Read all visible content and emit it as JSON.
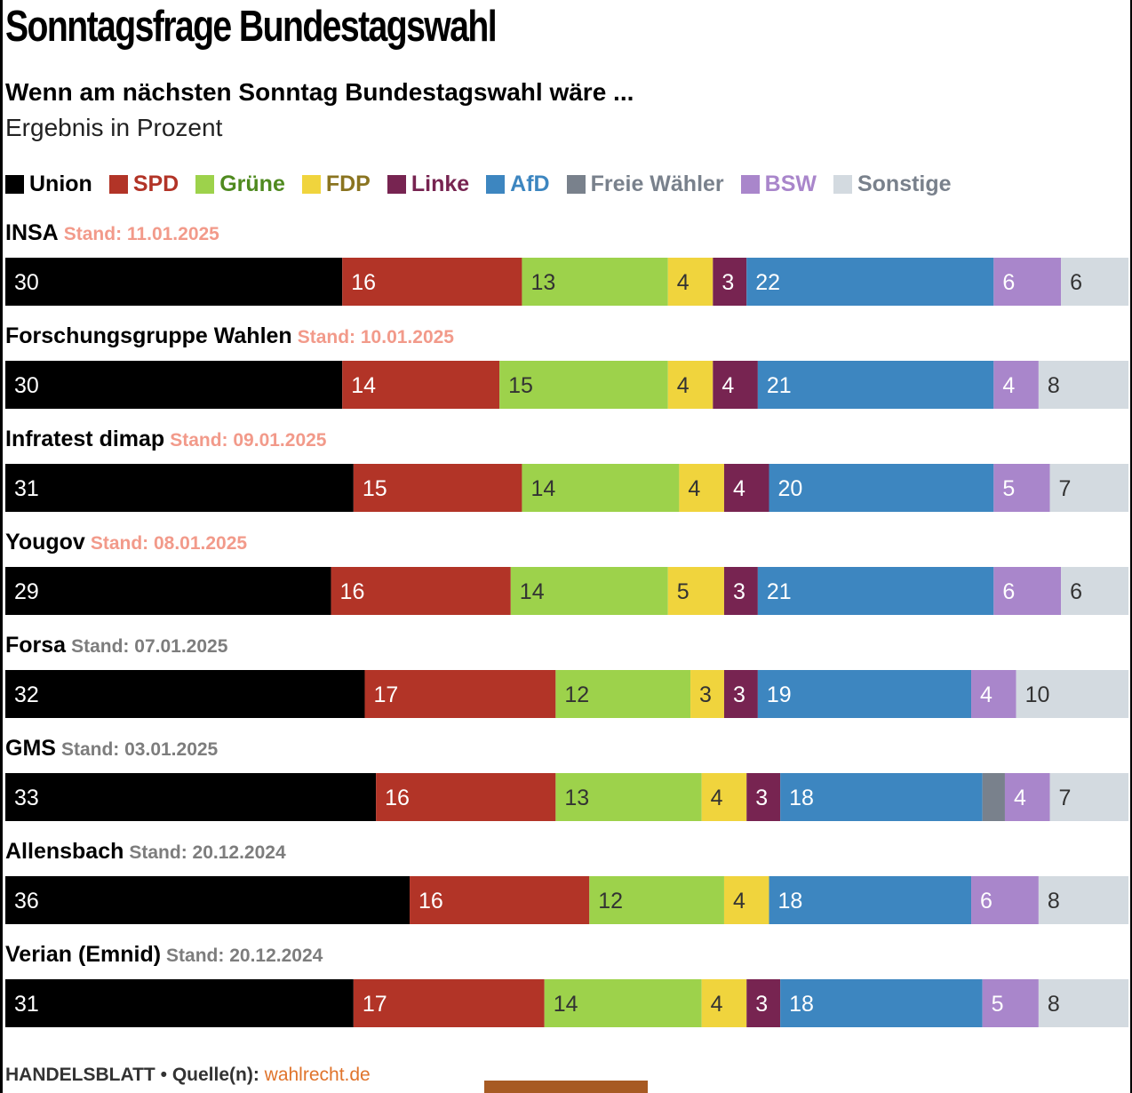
{
  "title": "Sonntagsfrage Bundestagswahl",
  "subtitle": "Wenn am nächsten Sonntag Bundestagswahl wäre ...",
  "unit_note": "Ergebnis in Prozent",
  "colors": {
    "Union": "#000000",
    "SPD": "#b23427",
    "Grüne": "#9dd24b",
    "FDP": "#f0d43d",
    "Linke": "#772451",
    "AfD": "#3d86c0",
    "Freie Wähler": "#79818c",
    "BSW": "#a986cb",
    "Sonstige": "#d3dae0"
  },
  "legend": [
    {
      "label": "Union",
      "color": "#000000",
      "text_color": "#000000"
    },
    {
      "label": "SPD",
      "color": "#b23427",
      "text_color": "#b23427"
    },
    {
      "label": "Grüne",
      "color": "#9dd24b",
      "text_color": "#4f8a1f"
    },
    {
      "label": "FDP",
      "color": "#f0d43d",
      "text_color": "#8a7420"
    },
    {
      "label": "Linke",
      "color": "#772451",
      "text_color": "#772451"
    },
    {
      "label": "AfD",
      "color": "#3d86c0",
      "text_color": "#3d86c0"
    },
    {
      "label": "Freie Wähler",
      "color": "#79818c",
      "text_color": "#79818c"
    },
    {
      "label": "BSW",
      "color": "#a986cb",
      "text_color": "#a986cb"
    },
    {
      "label": "Sonstige",
      "color": "#d3dae0",
      "text_color": "#79818c"
    }
  ],
  "stand_prefix": "Stand:",
  "stand_colors": {
    "recent": "#f29a8a",
    "older": "#7d7d7d"
  },
  "chart_data": {
    "type": "bar",
    "orientation": "horizontal",
    "stacked": true,
    "unit": "Prozent",
    "categories": [
      "INSA",
      "Forschungsgruppe Wahlen",
      "Infratest dimap",
      "Yougov",
      "Forsa",
      "GMS",
      "Allensbach",
      "Verian (Emnid)"
    ],
    "dates": [
      "11.01.2025",
      "10.01.2025",
      "09.01.2025",
      "08.01.2025",
      "07.01.2025",
      "03.01.2025",
      "20.12.2024",
      "20.12.2024"
    ],
    "date_highlight": [
      true,
      true,
      true,
      true,
      false,
      false,
      false,
      false
    ],
    "series": [
      {
        "name": "Union",
        "values": [
          30,
          30,
          31,
          29,
          32,
          33,
          36,
          31
        ]
      },
      {
        "name": "SPD",
        "values": [
          16,
          14,
          15,
          16,
          17,
          16,
          16,
          17
        ]
      },
      {
        "name": "Grüne",
        "values": [
          13,
          15,
          14,
          14,
          12,
          13,
          12,
          14
        ]
      },
      {
        "name": "FDP",
        "values": [
          4,
          4,
          4,
          5,
          3,
          4,
          4,
          4
        ]
      },
      {
        "name": "Linke",
        "values": [
          3,
          4,
          4,
          3,
          3,
          3,
          null,
          3
        ]
      },
      {
        "name": "AfD",
        "values": [
          22,
          21,
          20,
          21,
          19,
          18,
          18,
          18
        ]
      },
      {
        "name": "Freie Wähler",
        "values": [
          null,
          null,
          null,
          null,
          null,
          2,
          null,
          null
        ]
      },
      {
        "name": "BSW",
        "values": [
          6,
          4,
          5,
          6,
          4,
          4,
          6,
          5
        ]
      },
      {
        "name": "Sonstige",
        "values": [
          6,
          8,
          7,
          6,
          10,
          7,
          8,
          8
        ]
      }
    ],
    "value_labels": [
      [
        "30",
        "16",
        "13",
        "4",
        "3",
        "22",
        null,
        "6",
        "6"
      ],
      [
        "30",
        "14",
        "15",
        "4",
        "4",
        "21",
        null,
        "4",
        "8"
      ],
      [
        "31",
        "15",
        "14",
        "4",
        "4",
        "20",
        null,
        "5",
        "7"
      ],
      [
        "29",
        "16",
        "14",
        "5",
        "3",
        "21",
        null,
        "6",
        "6"
      ],
      [
        "32",
        "17",
        "12",
        "3",
        "3",
        "19",
        null,
        "4",
        "10"
      ],
      [
        "33",
        "16",
        "13",
        "4",
        "3",
        "18",
        "",
        "4",
        "7"
      ],
      [
        "36",
        "16",
        "12",
        "4",
        null,
        "18",
        null,
        "6",
        "8"
      ],
      [
        "31",
        "17",
        "14",
        "4",
        "3",
        "18",
        null,
        "5",
        "8"
      ]
    ]
  },
  "footer": {
    "brand": "HANDELSBLATT",
    "separator": "•",
    "source_label": "Quelle(n):",
    "source_link": "wahlrecht.de"
  }
}
